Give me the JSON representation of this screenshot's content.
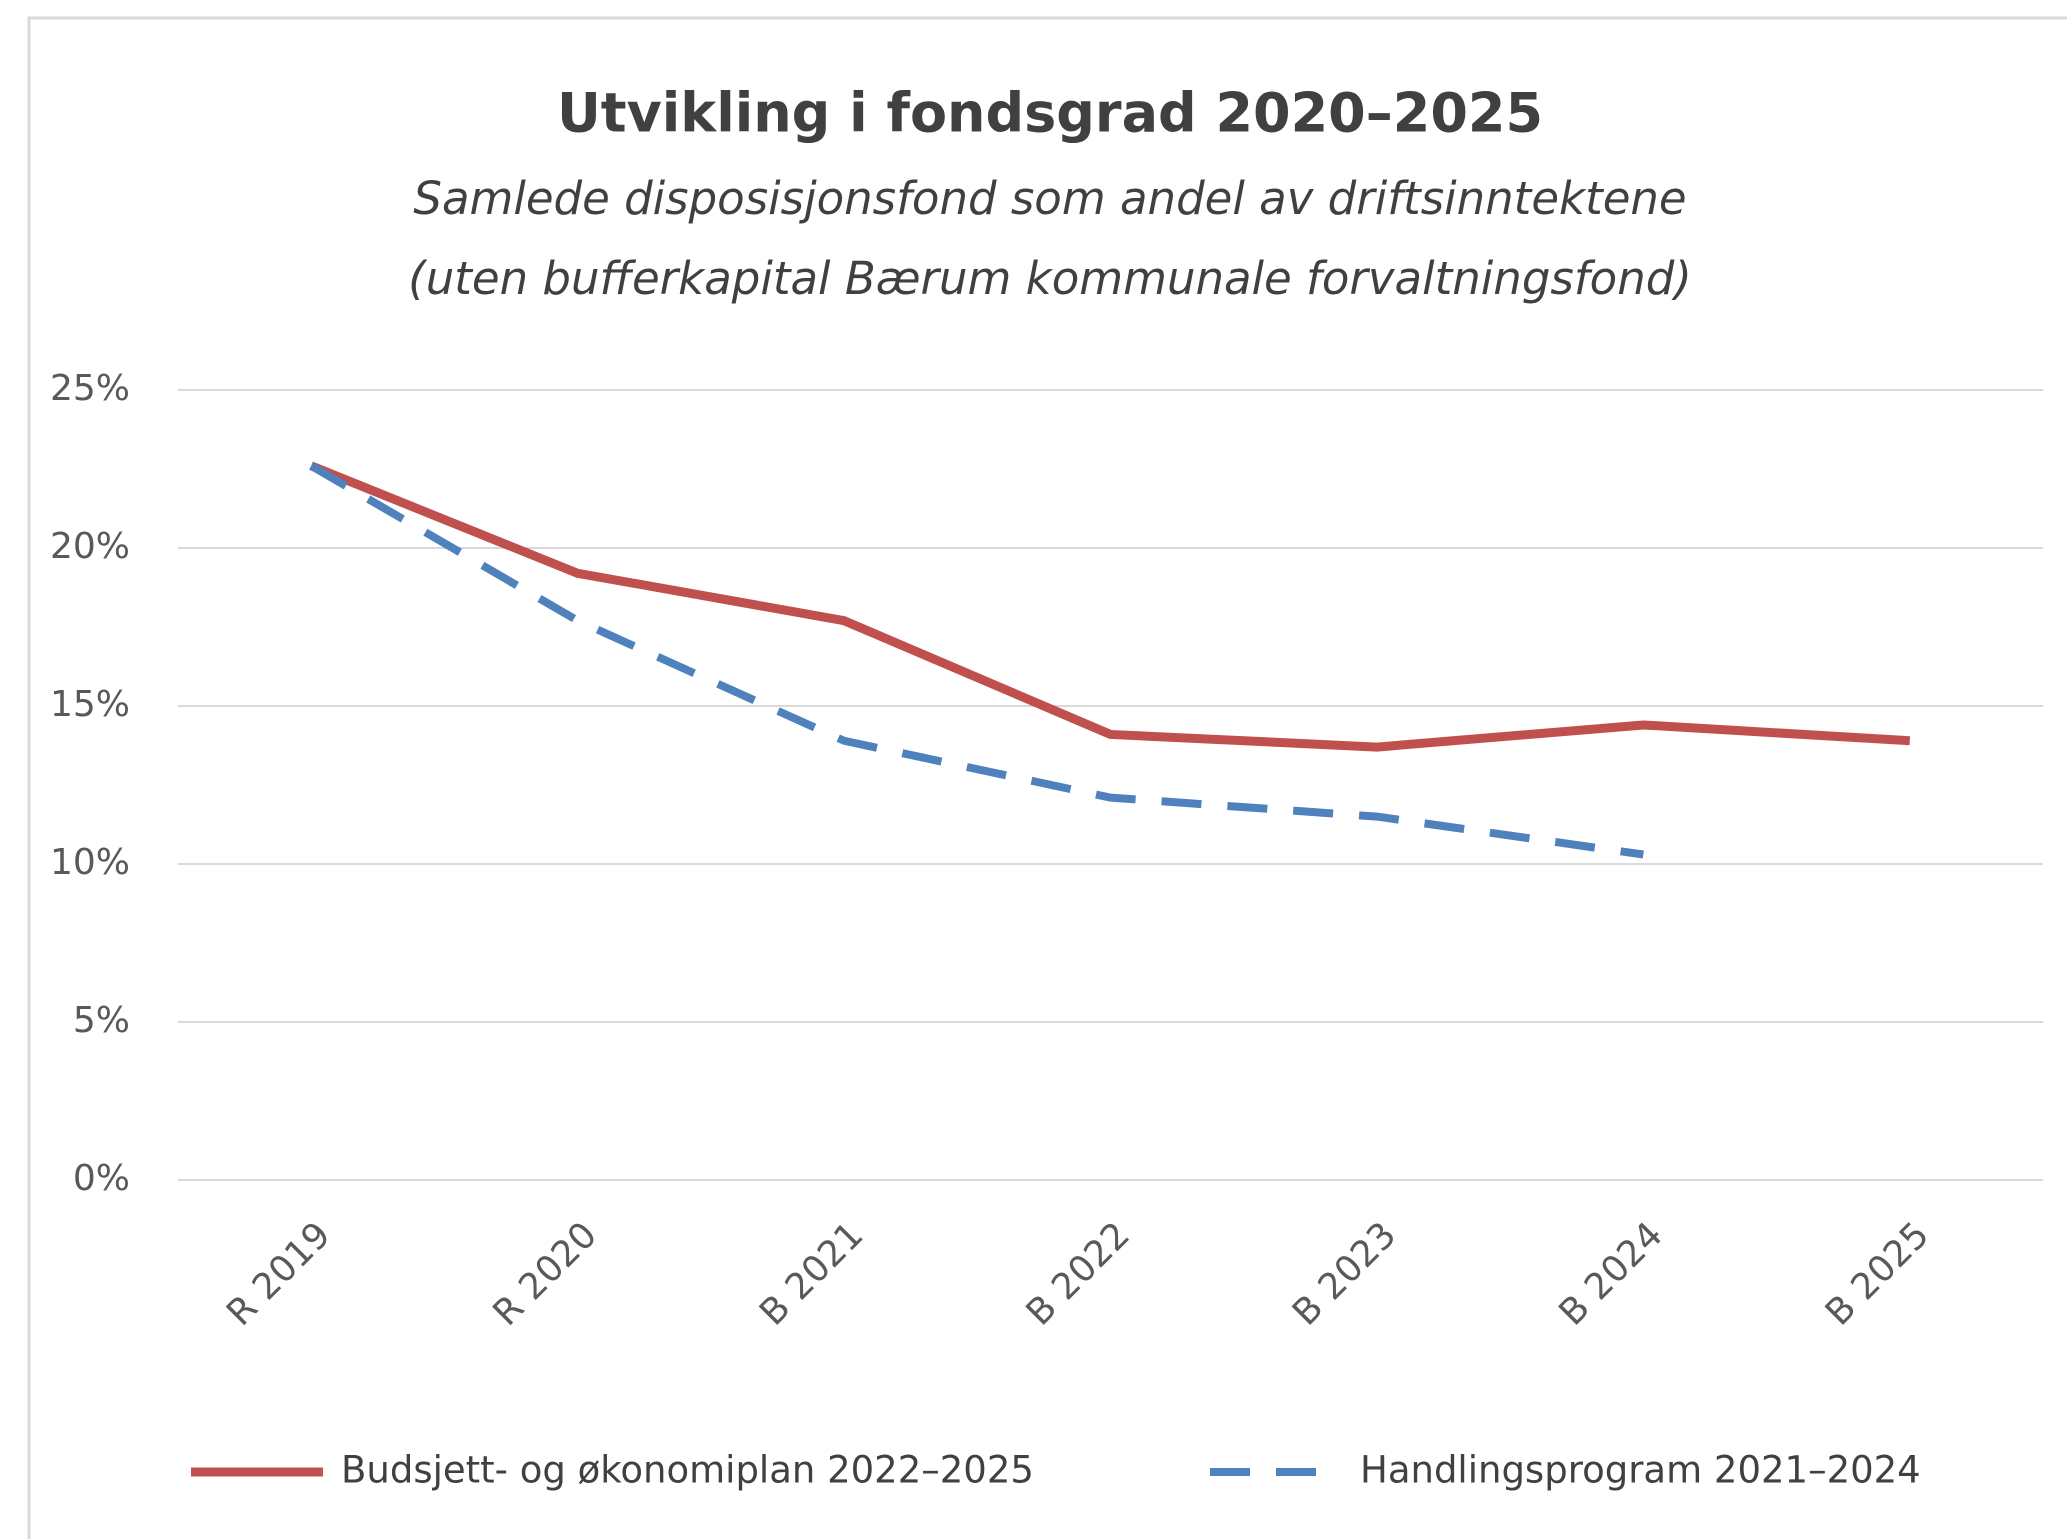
{
  "chart_data": {
    "type": "line",
    "title": "Utvikling i fondsgrad 2020–2025",
    "subtitle": [
      "Samlede disposisjonsfond som andel av driftsinntektene",
      "(uten bufferkapital Bærum kommunale forvaltningsfond)"
    ],
    "categories": [
      "R 2019",
      "R 2020",
      "B 2021",
      "B 2022",
      "B 2023",
      "B 2024",
      "B 2025"
    ],
    "series": [
      {
        "name": "Budsjett- og økonomiplan 2022–2025",
        "color": "#c0504d",
        "dash": false,
        "values": [
          22.6,
          19.2,
          17.7,
          14.1,
          13.7,
          14.4,
          13.9
        ]
      },
      {
        "name": "Handlingsprogram 2021–2024",
        "color": "#4f81bd",
        "dash": true,
        "values": [
          22.6,
          17.7,
          13.9,
          12.1,
          11.5,
          10.3,
          null
        ]
      }
    ],
    "ylim": [
      0,
      25
    ],
    "yticks": [
      {
        "value": 0,
        "label": "0%"
      },
      {
        "value": 5,
        "label": "5%"
      },
      {
        "value": 10,
        "label": "10%"
      },
      {
        "value": 15,
        "label": "15%"
      },
      {
        "value": 20,
        "label": "20%"
      },
      {
        "value": 25,
        "label": "25%"
      }
    ],
    "grid": true,
    "legend": "bottom"
  }
}
